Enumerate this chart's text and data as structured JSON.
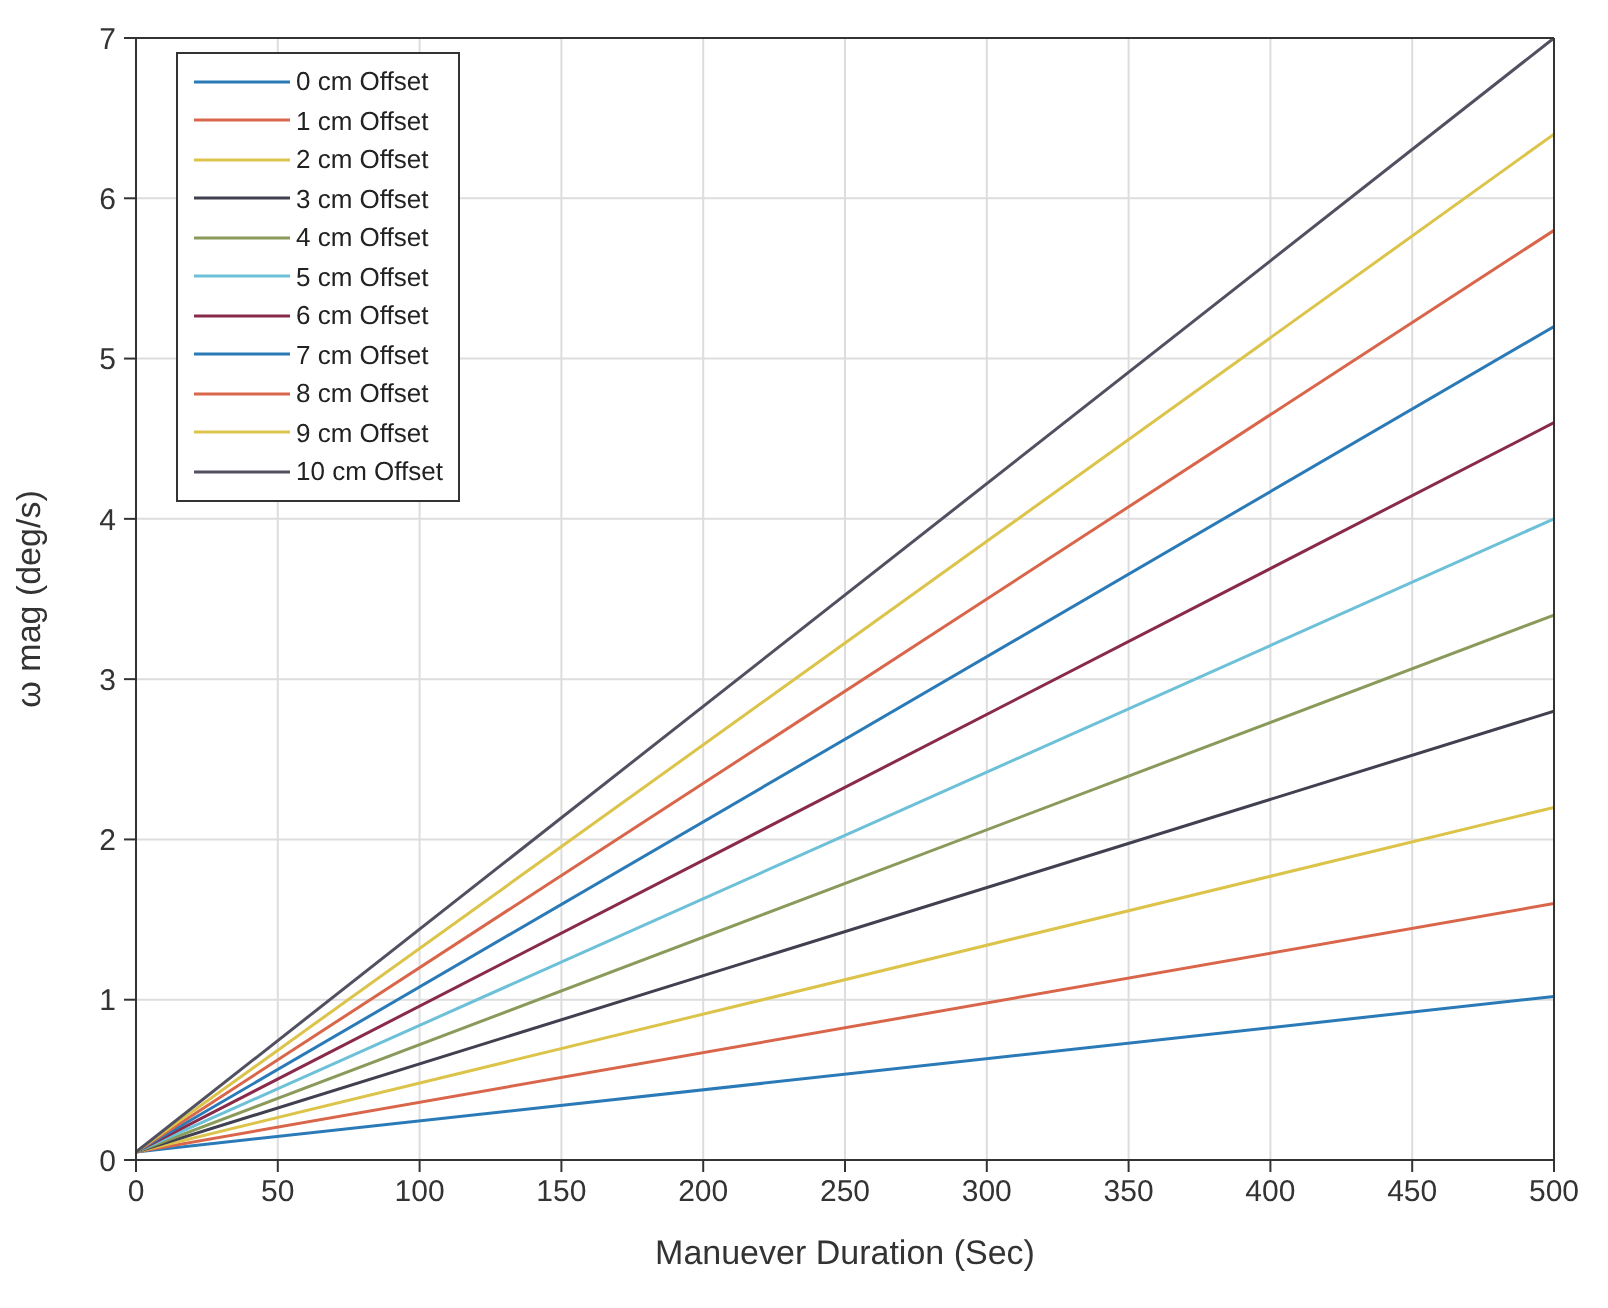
{
  "chart_data": {
    "type": "line",
    "xlabel": "Manuever Duration (Sec)",
    "ylabel": "ω mag (deg/s)",
    "x": [
      0,
      500
    ],
    "series": [
      {
        "name": "0 cm Offset",
        "color": "#2a7ab8",
        "values": [
          0.05,
          1.02
        ]
      },
      {
        "name": "1 cm Offset",
        "color": "#d9664a",
        "values": [
          0.05,
          1.6
        ]
      },
      {
        "name": "2 cm Offset",
        "color": "#dcc44a",
        "values": [
          0.05,
          2.2
        ]
      },
      {
        "name": "3 cm Offset",
        "color": "#404050",
        "values": [
          0.05,
          2.8
        ]
      },
      {
        "name": "4 cm Offset",
        "color": "#8a9a5a",
        "values": [
          0.05,
          3.4
        ]
      },
      {
        "name": "5 cm Offset",
        "color": "#6cc0d8",
        "values": [
          0.05,
          4.0
        ]
      },
      {
        "name": "6 cm Offset",
        "color": "#8a2a4a",
        "values": [
          0.05,
          4.6
        ]
      },
      {
        "name": "7 cm Offset",
        "color": "#2a7ab8",
        "values": [
          0.05,
          5.2
        ]
      },
      {
        "name": "8 cm Offset",
        "color": "#d9664a",
        "values": [
          0.05,
          5.8
        ]
      },
      {
        "name": "9 cm Offset",
        "color": "#dcc44a",
        "values": [
          0.05,
          6.4
        ]
      },
      {
        "name": "10 cm Offset",
        "color": "#505060",
        "values": [
          0.05,
          7.0
        ]
      }
    ],
    "xlim": [
      0,
      500
    ],
    "xticks": [
      0,
      50,
      100,
      150,
      200,
      250,
      300,
      350,
      400,
      450,
      500
    ],
    "ylim": [
      0,
      7
    ],
    "yticks": [
      0,
      1,
      2,
      3,
      4,
      5,
      6,
      7
    ],
    "grid": true,
    "legend": "top left",
    "marker": "none",
    "line_style": "solid"
  }
}
